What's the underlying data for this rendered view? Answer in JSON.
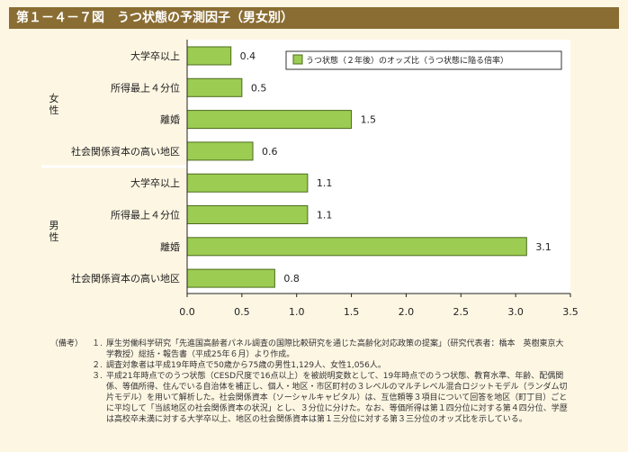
{
  "title": "第１－４－７図　うつ状態の予測因子（男女別）",
  "chart_data": {
    "type": "bar",
    "orientation": "horizontal",
    "series": [
      {
        "name": "うつ状態（２年後）のオッズ比（うつ状態に陥る倍率）"
      }
    ],
    "groups": [
      {
        "label": "女性",
        "items": [
          {
            "category": "大学卒以上",
            "value": 0.4,
            "value_label": "0.4"
          },
          {
            "category": "所得最上４分位",
            "value": 0.5,
            "value_label": "0.5"
          },
          {
            "category": "離婚",
            "value": 1.5,
            "value_label": "1.5"
          },
          {
            "category": "社会関係資本の高い地区",
            "value": 0.6,
            "value_label": "0.6"
          }
        ]
      },
      {
        "label": "男性",
        "items": [
          {
            "category": "大学卒以上",
            "value": 1.1,
            "value_label": "1.1"
          },
          {
            "category": "所得最上４分位",
            "value": 1.1,
            "value_label": "1.1"
          },
          {
            "category": "離婚",
            "value": 3.1,
            "value_label": "3.1"
          },
          {
            "category": "社会関係資本の高い地区",
            "value": 0.8,
            "value_label": "0.8"
          }
        ]
      }
    ],
    "xlim": [
      0,
      3.5
    ],
    "xticks": [
      "0.0",
      "0.5",
      "1.0",
      "1.5",
      "2.0",
      "2.5",
      "3.0",
      "3.5"
    ],
    "bar_color": "#9ccc52",
    "bar_edge_color": "#4d6b1e",
    "legend_position": "top-right",
    "grid": false
  },
  "notes": {
    "label": "（備考）",
    "items": [
      {
        "num": "１.",
        "text": "厚生労働科学研究「先進国高齢者パネル調査の国際比較研究を通じた高齢化対応政策の提案」（研究代表者：橋本　英樹東京大学教授）総括・報告書（平成25年６月）より作成。"
      },
      {
        "num": "２.",
        "text": "調査対象者は平成19年時点で50歳から75歳の男性1,129人、女性1,056人。"
      },
      {
        "num": "３.",
        "text": "平成21年時点でのうつ状態（CESD尺度で16点以上）を被説明変数として、19年時点でのうつ状態、教育水準、年齢、配偶関係、等価所得、住んでいる自治体を補正し、個人・地区・市区町村の３レベルのマルチレベル混合ロジットモデル（ランダム切片モデル）を用いて解析した。社会関係資本（ソーシャルキャピタル）は、互信頼等３項目について回答を地区（町丁目）ごとに平均して「当該地区の社会関係資本の状況」とし、３分位に分けた。なお、等価所得は第１四分位に対する第４四分位、学歴は高校卒未満に対する大学卒以上、地区の社会関係資本は第１三分位に対する第３三分位のオッズ比を示している。"
      }
    ]
  }
}
